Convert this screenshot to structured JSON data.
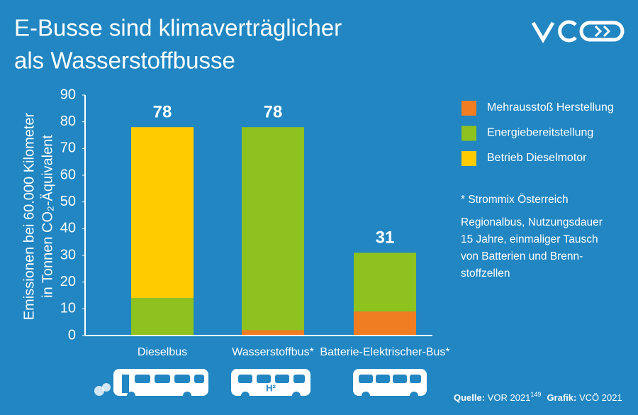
{
  "chart_data": {
    "type": "stacked_bar",
    "title_lines": [
      "E-Busse sind klimaverträglicher",
      "als Wasserstoffbusse"
    ],
    "y_label_lines": [
      "Emissionen bei 60.000 Kilometer",
      "in Tonnen CO₂-Äquivalent"
    ],
    "categories": [
      "Dieselbus",
      "Wasserstoffbus*",
      "Batterie-Elektrischer-Bus*"
    ],
    "series": [
      {
        "name": "Mehrausstoß Herstellung",
        "color": "#f07d22",
        "values": [
          0,
          2,
          9
        ]
      },
      {
        "name": "Energiebereitstellung",
        "color": "#8dc21f",
        "values": [
          14,
          76,
          22
        ]
      },
      {
        "name": "Betrieb Dieselmotor",
        "color": "#ffcc00",
        "values": [
          64,
          0,
          0
        ]
      }
    ],
    "totals": [
      78,
      78,
      31
    ],
    "ylim": [
      0,
      90
    ],
    "yticks": [
      0,
      10,
      20,
      30,
      40,
      50,
      60,
      70,
      80,
      90
    ],
    "notes": [
      "* Strommix Österreich",
      "Regionalbus, Nutzungsdauer",
      "15 Jahre, einmaliger Tausch",
      "von Batterien und Brenn-",
      "stoffzellen"
    ],
    "source": {
      "label": "Quelle:",
      "text": "VOR 2021",
      "sup": "149",
      "grafik_label": "Grafik:",
      "grafik": "VCÖ 2021"
    },
    "icon_label": "H²"
  }
}
